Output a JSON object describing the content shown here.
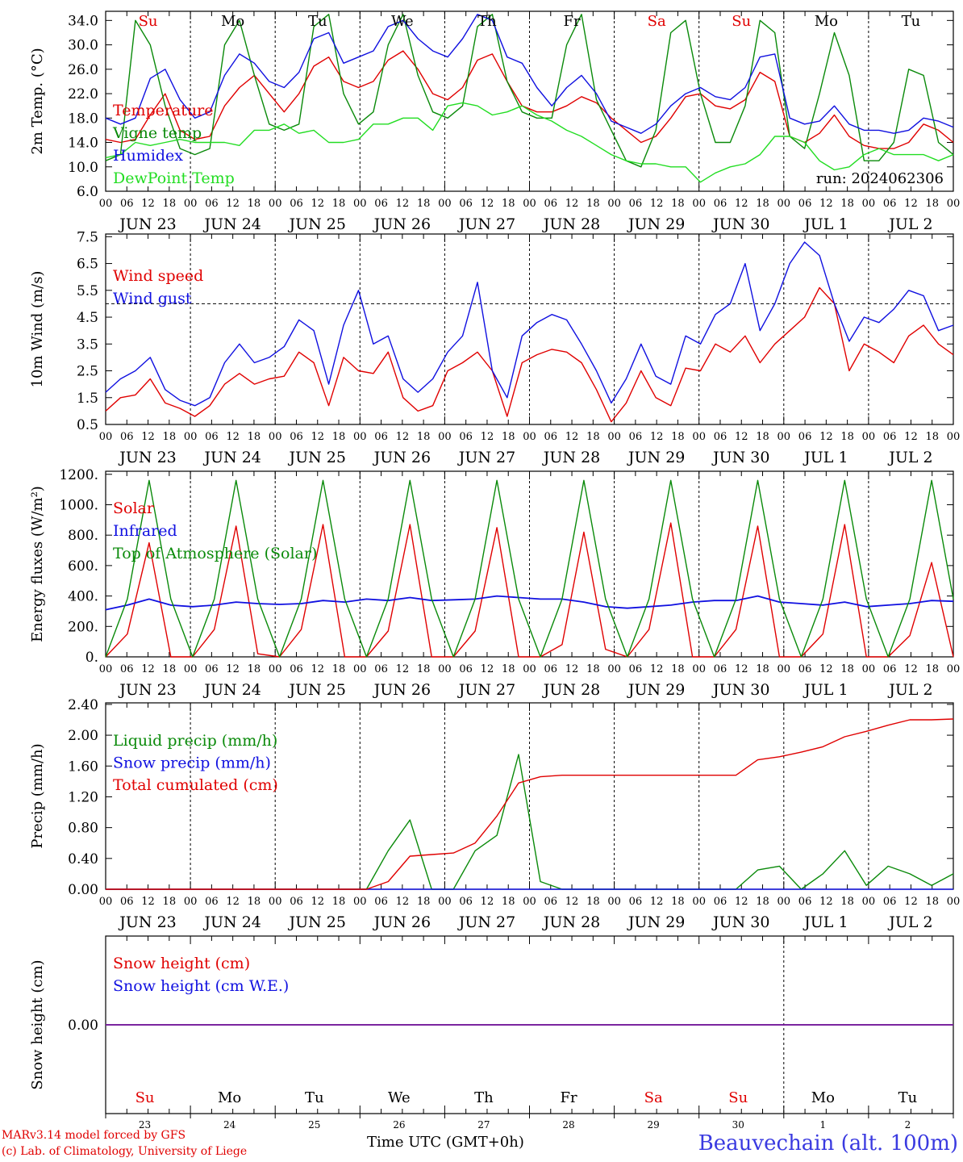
{
  "chart_data": [
    {
      "type": "line",
      "ylabel": "2m Temp. (°C)",
      "ylim": [
        6,
        35.5
      ],
      "yticks": [
        "6.0",
        "10.0",
        "14.0",
        "18.0",
        "22.0",
        "26.0",
        "30.0",
        "34.0"
      ],
      "xlabel": "",
      "x_hours_labels": [
        "00",
        "06",
        "12",
        "18"
      ],
      "date_labels": [
        "JUN 23",
        "JUN 24",
        "JUN 25",
        "JUN 26",
        "JUN 27",
        "JUN 28",
        "JUN 29",
        "JUN 30",
        "JUL  1",
        "JUL  2"
      ],
      "weekday_labels": [
        {
          "text": "Su",
          "color": "#e00000"
        },
        {
          "text": "Mo",
          "color": "#000000"
        },
        {
          "text": "Tu",
          "color": "#000000"
        },
        {
          "text": "We",
          "color": "#000000"
        },
        {
          "text": "Th",
          "color": "#000000"
        },
        {
          "text": "Fr",
          "color": "#000000"
        },
        {
          "text": "Sa",
          "color": "#e00000"
        },
        {
          "text": "Su",
          "color": "#e00000"
        },
        {
          "text": "Mo",
          "color": "#000000"
        },
        {
          "text": "Tu",
          "color": "#000000"
        }
      ],
      "annotation": "run: 2024062306",
      "hours_step": 6,
      "series": [
        {
          "name": "Temperature",
          "color": "#e00000",
          "values": [
            14.5,
            14,
            14.5,
            18.5,
            22,
            16,
            14.5,
            15,
            20,
            23,
            25,
            22,
            19,
            22,
            26.5,
            28,
            24,
            23,
            24,
            27.5,
            29,
            26,
            22,
            21,
            23,
            27.5,
            28.5,
            24,
            20,
            19,
            19,
            20,
            21.5,
            20.5,
            18,
            16,
            14,
            15,
            18,
            21.5,
            22,
            20,
            19.5,
            21,
            25.5,
            24,
            15,
            14,
            15.5,
            18.5,
            15,
            13.5,
            13,
            13,
            14,
            17,
            16,
            14
          ]
        },
        {
          "name": "Vigne temp",
          "color": "#0a8a0a",
          "values": [
            11,
            12,
            34,
            30,
            20,
            13,
            12,
            13,
            30,
            34,
            25,
            17,
            16,
            17,
            33,
            35,
            22,
            17,
            19,
            30,
            35,
            25,
            19,
            18,
            20,
            33,
            35,
            24,
            19,
            18,
            18,
            30,
            35,
            21,
            16,
            11,
            10,
            16,
            32,
            34,
            22,
            14,
            14,
            20,
            34,
            32,
            15,
            13,
            22,
            32,
            25,
            11,
            11,
            14,
            26,
            25,
            14,
            12
          ]
        },
        {
          "name": "Humidex",
          "color": "#1010e0",
          "values": [
            18,
            17,
            18,
            24.5,
            26,
            21,
            18,
            19,
            25,
            28.5,
            27,
            24,
            23,
            25.5,
            31,
            32,
            27,
            28,
            29,
            33,
            34,
            31,
            29,
            28,
            31,
            35,
            34,
            28,
            27,
            23,
            20,
            23,
            25,
            22,
            17.5,
            16.5,
            15.5,
            17,
            20,
            22,
            23,
            21.5,
            21,
            23,
            28,
            28.5,
            18,
            17,
            17.5,
            20,
            17,
            16,
            16,
            15.5,
            16,
            18,
            17.5,
            16.5
          ]
        },
        {
          "name": "DewPoint Temp",
          "color": "#22dd22",
          "values": [
            11.5,
            12,
            14,
            13.5,
            14,
            14.5,
            14,
            14,
            14,
            13.5,
            16,
            16,
            17,
            15.5,
            16,
            14,
            14,
            14.5,
            17,
            17,
            18,
            18,
            16,
            20,
            20.5,
            20,
            18.5,
            19,
            20,
            18.5,
            17.5,
            16,
            15,
            13.5,
            12,
            11,
            10.5,
            10.5,
            10,
            10,
            7.5,
            9,
            10,
            10.5,
            12,
            15,
            15,
            14,
            11,
            9.5,
            10,
            12,
            13,
            12,
            12,
            12,
            11,
            12
          ]
        }
      ]
    },
    {
      "type": "line",
      "ylabel": "10m Wind (m/s)",
      "ylim": [
        0.5,
        7.6
      ],
      "yticks": [
        "0.5",
        "1.5",
        "2.5",
        "3.5",
        "4.5",
        "5.5",
        "6.5",
        "7.5"
      ],
      "reference_line": 5.0,
      "x_hours_labels": [
        "00",
        "06",
        "12",
        "18"
      ],
      "date_labels": [
        "JUN 23",
        "JUN 24",
        "JUN 25",
        "JUN 26",
        "JUN 27",
        "JUN 28",
        "JUN 29",
        "JUN 30",
        "JUL  1",
        "JUL  2"
      ],
      "hours_step": 6,
      "series": [
        {
          "name": "Wind speed",
          "color": "#e00000",
          "values": [
            1,
            1.5,
            1.6,
            2.2,
            1.3,
            1.1,
            0.8,
            1.2,
            2,
            2.4,
            2,
            2.2,
            2.3,
            3.2,
            2.8,
            1.2,
            3,
            2.5,
            2.4,
            3.2,
            1.5,
            1,
            1.2,
            2.5,
            2.8,
            3.2,
            2.5,
            0.8,
            2.8,
            3.1,
            3.3,
            3.2,
            2.8,
            1.8,
            0.6,
            1.3,
            2.5,
            1.5,
            1.2,
            2.6,
            2.5,
            3.5,
            3.2,
            3.8,
            2.8,
            3.5,
            4,
            4.5,
            5.6,
            5,
            2.5,
            3.5,
            3.2,
            2.8,
            3.8,
            4.2,
            3.5,
            3.1
          ]
        },
        {
          "name": "Wind gust",
          "color": "#1010e0",
          "values": [
            1.7,
            2.2,
            2.5,
            3,
            1.8,
            1.4,
            1.2,
            1.5,
            2.8,
            3.5,
            2.8,
            3,
            3.4,
            4.4,
            4,
            2,
            4.2,
            5.5,
            3.5,
            3.8,
            2.2,
            1.7,
            2.2,
            3.2,
            3.8,
            5.8,
            2.5,
            1.5,
            3.8,
            4.3,
            4.6,
            4.4,
            3.5,
            2.5,
            1.3,
            2.2,
            3.5,
            2.3,
            2,
            3.8,
            3.5,
            4.6,
            5,
            6.5,
            4,
            5,
            6.5,
            7.3,
            6.8,
            5,
            3.6,
            4.5,
            4.3,
            4.8,
            5.5,
            5.3,
            4,
            4.2
          ]
        }
      ]
    },
    {
      "type": "line",
      "ylabel": "Energy fluxes (W/m²)",
      "ylim": [
        0,
        1220
      ],
      "yticks": [
        "0.",
        "200.",
        "400.",
        "600.",
        "800.",
        "1000.",
        "1200."
      ],
      "x_hours_labels": [
        "00",
        "06",
        "12",
        "18"
      ],
      "date_labels": [
        "JUN 23",
        "JUN 24",
        "JUN 25",
        "JUN 26",
        "JUN 27",
        "JUN 28",
        "JUN 29",
        "JUN 30",
        "JUL  1",
        "JUL  2"
      ],
      "hours_step": 6,
      "series": [
        {
          "name": "Solar",
          "color": "#e00000",
          "values": [
            0,
            150,
            750,
            0,
            0,
            180,
            860,
            20,
            0,
            180,
            870,
            0,
            0,
            170,
            870,
            0,
            0,
            170,
            850,
            0,
            0,
            80,
            820,
            50,
            0,
            180,
            880,
            0,
            0,
            180,
            860,
            0,
            0,
            150,
            870,
            0,
            0,
            140,
            620,
            0
          ]
        },
        {
          "name": "Infrared",
          "color": "#1010e0",
          "values": [
            310,
            340,
            380,
            340,
            330,
            340,
            360,
            350,
            345,
            350,
            370,
            360,
            380,
            370,
            390,
            370,
            375,
            380,
            400,
            390,
            380,
            380,
            360,
            330,
            320,
            330,
            340,
            360,
            370,
            370,
            400,
            360,
            350,
            340,
            360,
            330,
            340,
            350,
            370,
            365
          ]
        },
        {
          "name": "Top of Atmosphere (Solar)",
          "color": "#0a8a0a",
          "values": [
            0,
            380,
            1160,
            380,
            0,
            380,
            1160,
            380,
            0,
            380,
            1160,
            380,
            0,
            380,
            1160,
            380,
            0,
            380,
            1160,
            380,
            0,
            380,
            1160,
            380,
            0,
            380,
            1160,
            380,
            0,
            380,
            1160,
            380,
            0,
            380,
            1160,
            380,
            0,
            380,
            1160,
            380
          ]
        }
      ]
    },
    {
      "type": "line",
      "ylabel": "Precip (mm/h)",
      "ylim": [
        0,
        2.42
      ],
      "yticks": [
        "0.00",
        "0.40",
        "0.80",
        "1.20",
        "1.60",
        "2.00",
        "2.40"
      ],
      "x_hours_labels": [
        "00",
        "06",
        "12",
        "18"
      ],
      "date_labels": [
        "JUN 23",
        "JUN 24",
        "JUN 25",
        "JUN 26",
        "JUN 27",
        "JUN 28",
        "JUN 29",
        "JUN 30",
        "JUL  1",
        "JUL  2"
      ],
      "hours_step": 6,
      "series": [
        {
          "name": "Liquid precip (mm/h)",
          "color": "#0a8a0a",
          "values": [
            0,
            0,
            0,
            0,
            0,
            0,
            0,
            0,
            0,
            0,
            0,
            0,
            0,
            0.5,
            0.9,
            0,
            0,
            0.5,
            0.7,
            1.75,
            0.1,
            0,
            0,
            0,
            0,
            0,
            0,
            0,
            0,
            0,
            0.25,
            0.3,
            0,
            0.2,
            0.5,
            0.05,
            0.3,
            0.2,
            0.05,
            0.2
          ]
        },
        {
          "name": "Snow precip (mm/h)",
          "color": "#1010e0",
          "values": [
            0,
            0,
            0,
            0,
            0,
            0,
            0,
            0,
            0,
            0,
            0,
            0,
            0,
            0,
            0,
            0,
            0,
            0,
            0,
            0,
            0,
            0,
            0,
            0,
            0,
            0,
            0,
            0,
            0,
            0,
            0,
            0,
            0,
            0,
            0,
            0,
            0,
            0,
            0,
            0
          ]
        },
        {
          "name": "Total cumulated (cm)",
          "color": "#e00000",
          "values": [
            0,
            0,
            0,
            0,
            0,
            0,
            0,
            0,
            0,
            0,
            0,
            0,
            0,
            0.1,
            0.43,
            0.45,
            0.47,
            0.6,
            0.95,
            1.38,
            1.46,
            1.48,
            1.48,
            1.48,
            1.48,
            1.48,
            1.48,
            1.48,
            1.48,
            1.48,
            1.68,
            1.72,
            1.78,
            1.85,
            1.98,
            2.05,
            2.13,
            2.2,
            2.2,
            2.21
          ]
        }
      ]
    },
    {
      "type": "line",
      "ylabel": "Snow height (cm)",
      "yticks": [
        "0.00"
      ],
      "xlabel": "Time UTC (GMT+0h)",
      "day_numbers": [
        "23",
        "24",
        "25",
        "26",
        "27",
        "28",
        "29",
        "30",
        "1",
        "2"
      ],
      "weekday_labels": [
        {
          "text": "Su",
          "color": "#e00000"
        },
        {
          "text": "Mo",
          "color": "#000000"
        },
        {
          "text": "Tu",
          "color": "#000000"
        },
        {
          "text": "We",
          "color": "#000000"
        },
        {
          "text": "Th",
          "color": "#000000"
        },
        {
          "text": "Fr",
          "color": "#000000"
        },
        {
          "text": "Sa",
          "color": "#e00000"
        },
        {
          "text": "Su",
          "color": "#e00000"
        },
        {
          "text": "Mo",
          "color": "#000000"
        },
        {
          "text": "Tu",
          "color": "#000000"
        }
      ],
      "series": [
        {
          "name": "Snow height (cm)",
          "color": "#e00000",
          "values": [
            0,
            0
          ]
        },
        {
          "name": "Snow height (cm W.E.)",
          "color": "#1010e0",
          "values": [
            0,
            0
          ]
        }
      ]
    }
  ],
  "footer": {
    "model": "MARv3.14 model forced by GFS",
    "credit": "(c) Lab. of Climatology, University of Liege",
    "station": "Beauvechain (alt. 100m)",
    "time_axis": "Time UTC (GMT+0h)"
  }
}
